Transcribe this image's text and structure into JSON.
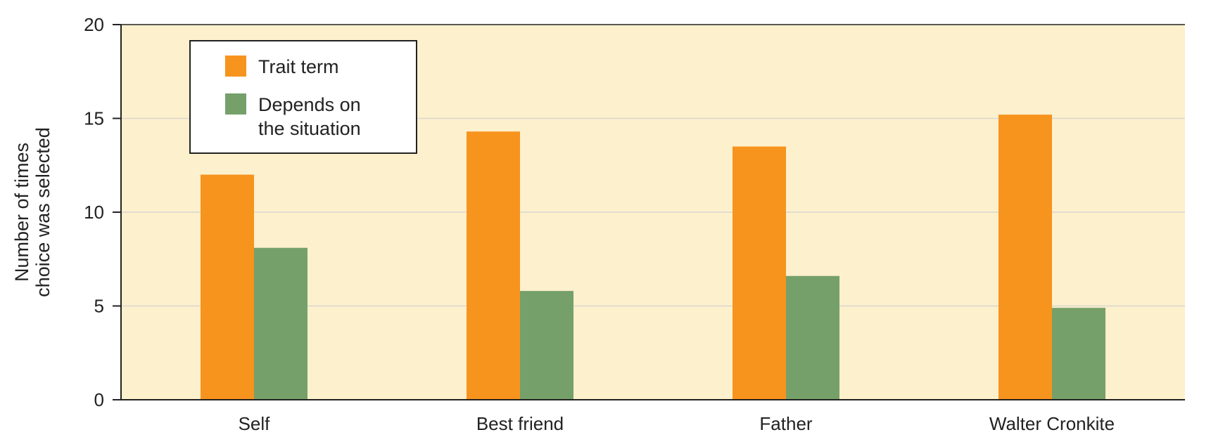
{
  "chart_data": {
    "type": "bar",
    "title": "",
    "xlabel": "",
    "ylabel_lines": [
      "Number of times",
      "choice was selected"
    ],
    "categories": [
      "Self",
      "Best friend",
      "Father",
      "Walter Cronkite"
    ],
    "series": [
      {
        "name": "Trait term",
        "values": [
          12.0,
          14.3,
          13.5,
          15.2
        ]
      },
      {
        "name": "Depends on the situation",
        "name_lines": [
          "Depends on",
          "the situation"
        ],
        "values": [
          8.1,
          5.8,
          6.6,
          4.9
        ]
      }
    ],
    "ylim": [
      0,
      20
    ],
    "yticks": [
      "0",
      "5",
      "10",
      "15",
      "20"
    ],
    "grid": true,
    "legend_position": "top-left"
  },
  "colors": {
    "plot_background": "#fdf0cd",
    "gridline": "#d9d6cf",
    "axis": "#222222",
    "series": [
      "#f7941e",
      "#76a06a"
    ]
  }
}
